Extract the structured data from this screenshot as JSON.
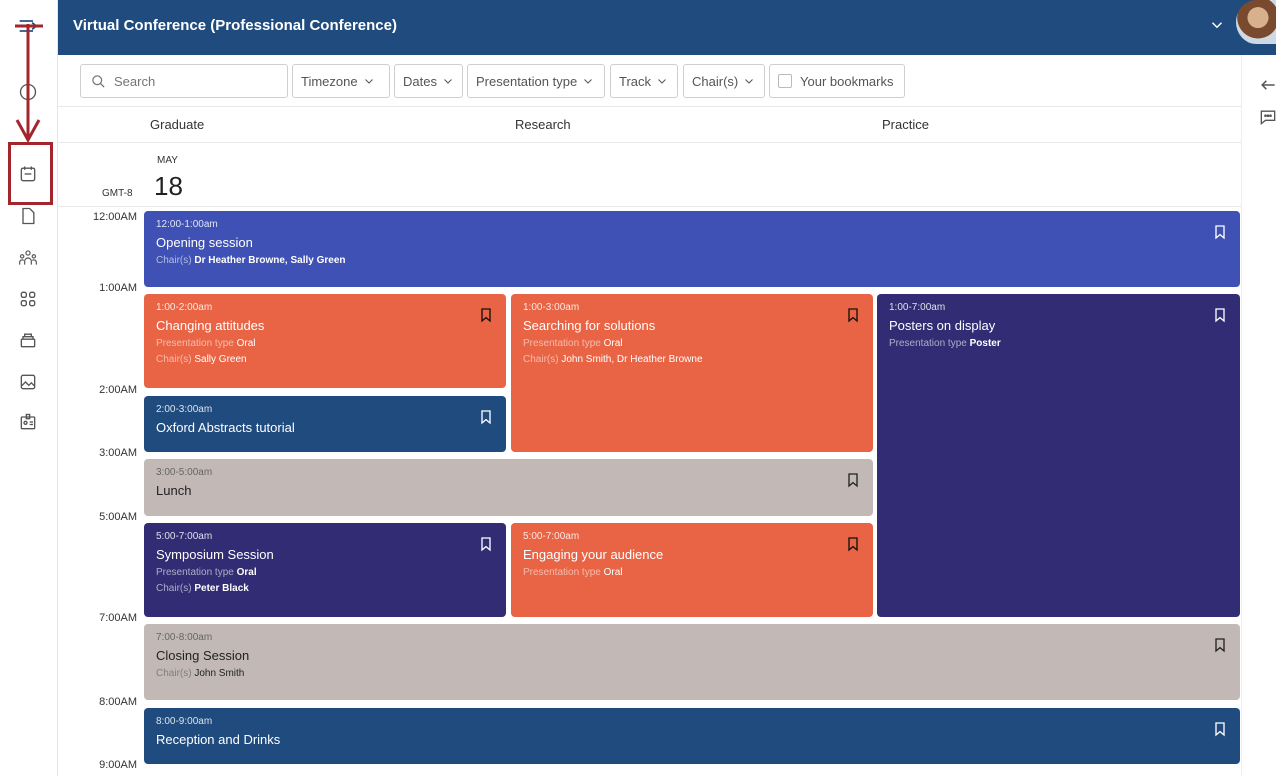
{
  "header": {
    "title": "Virtual Conference (Professional Conference)"
  },
  "rail": {
    "icons": [
      "menu-expand-icon",
      "info-icon",
      "calendar-icon",
      "document-icon",
      "people-icon",
      "grid-icon",
      "archive-icon",
      "image-icon",
      "badge-icon"
    ]
  },
  "filters": {
    "search_placeholder": "Search",
    "timezone": "Timezone",
    "dates": "Dates",
    "presentation_type": "Presentation type",
    "track": "Track",
    "chairs": "Chair(s)",
    "bookmarks": "Your bookmarks"
  },
  "columns": [
    "Graduate",
    "Research",
    "Practice"
  ],
  "date": {
    "month": "MAY",
    "day": "18",
    "timezone": "GMT-8"
  },
  "time_labels": [
    "12:00AM",
    "1:00AM",
    "2:00AM",
    "3:00AM",
    "5:00AM",
    "7:00AM",
    "8:00AM",
    "9:00AM"
  ],
  "sessions": [
    {
      "time": "12:00-1:00am",
      "title": "Opening session",
      "chairs_label": "Chair(s)",
      "chairs": "Dr Heather Browne, Sally Green"
    },
    {
      "time": "1:00-2:00am",
      "title": "Changing attitudes",
      "type_label": "Presentation type",
      "type": "Oral",
      "chairs_label": "Chair(s)",
      "chairs": "Sally Green"
    },
    {
      "time": "1:00-3:00am",
      "title": "Searching for solutions",
      "type_label": "Presentation type",
      "type": "Oral",
      "chairs_label": "Chair(s)",
      "chairs": "John Smith, Dr Heather Browne"
    },
    {
      "time": "1:00-7:00am",
      "title": "Posters on display",
      "type_label": "Presentation type",
      "type": "Poster"
    },
    {
      "time": "2:00-3:00am",
      "title": "Oxford Abstracts tutorial"
    },
    {
      "time": "3:00-5:00am",
      "title": "Lunch"
    },
    {
      "time": "5:00-7:00am",
      "title": "Symposium Session",
      "type_label": "Presentation type",
      "type": "Oral",
      "chairs_label": "Chair(s)",
      "chairs": "Peter Black"
    },
    {
      "time": "5:00-7:00am",
      "title": "Engaging your audience",
      "type_label": "Presentation type",
      "type": "Oral"
    },
    {
      "time": "7:00-8:00am",
      "title": "Closing Session",
      "chairs_label": "Chair(s)",
      "chairs": "John Smith"
    },
    {
      "time": "8:00-9:00am",
      "title": "Reception and Drinks"
    }
  ],
  "colors": {
    "header": "#1f4b7e",
    "blue": "#3f51b5",
    "orange": "#e96444",
    "navy": "#1f4b7e",
    "indigo": "#312c73",
    "grey": "#c2b9b7",
    "annotation": "#a3262c"
  }
}
